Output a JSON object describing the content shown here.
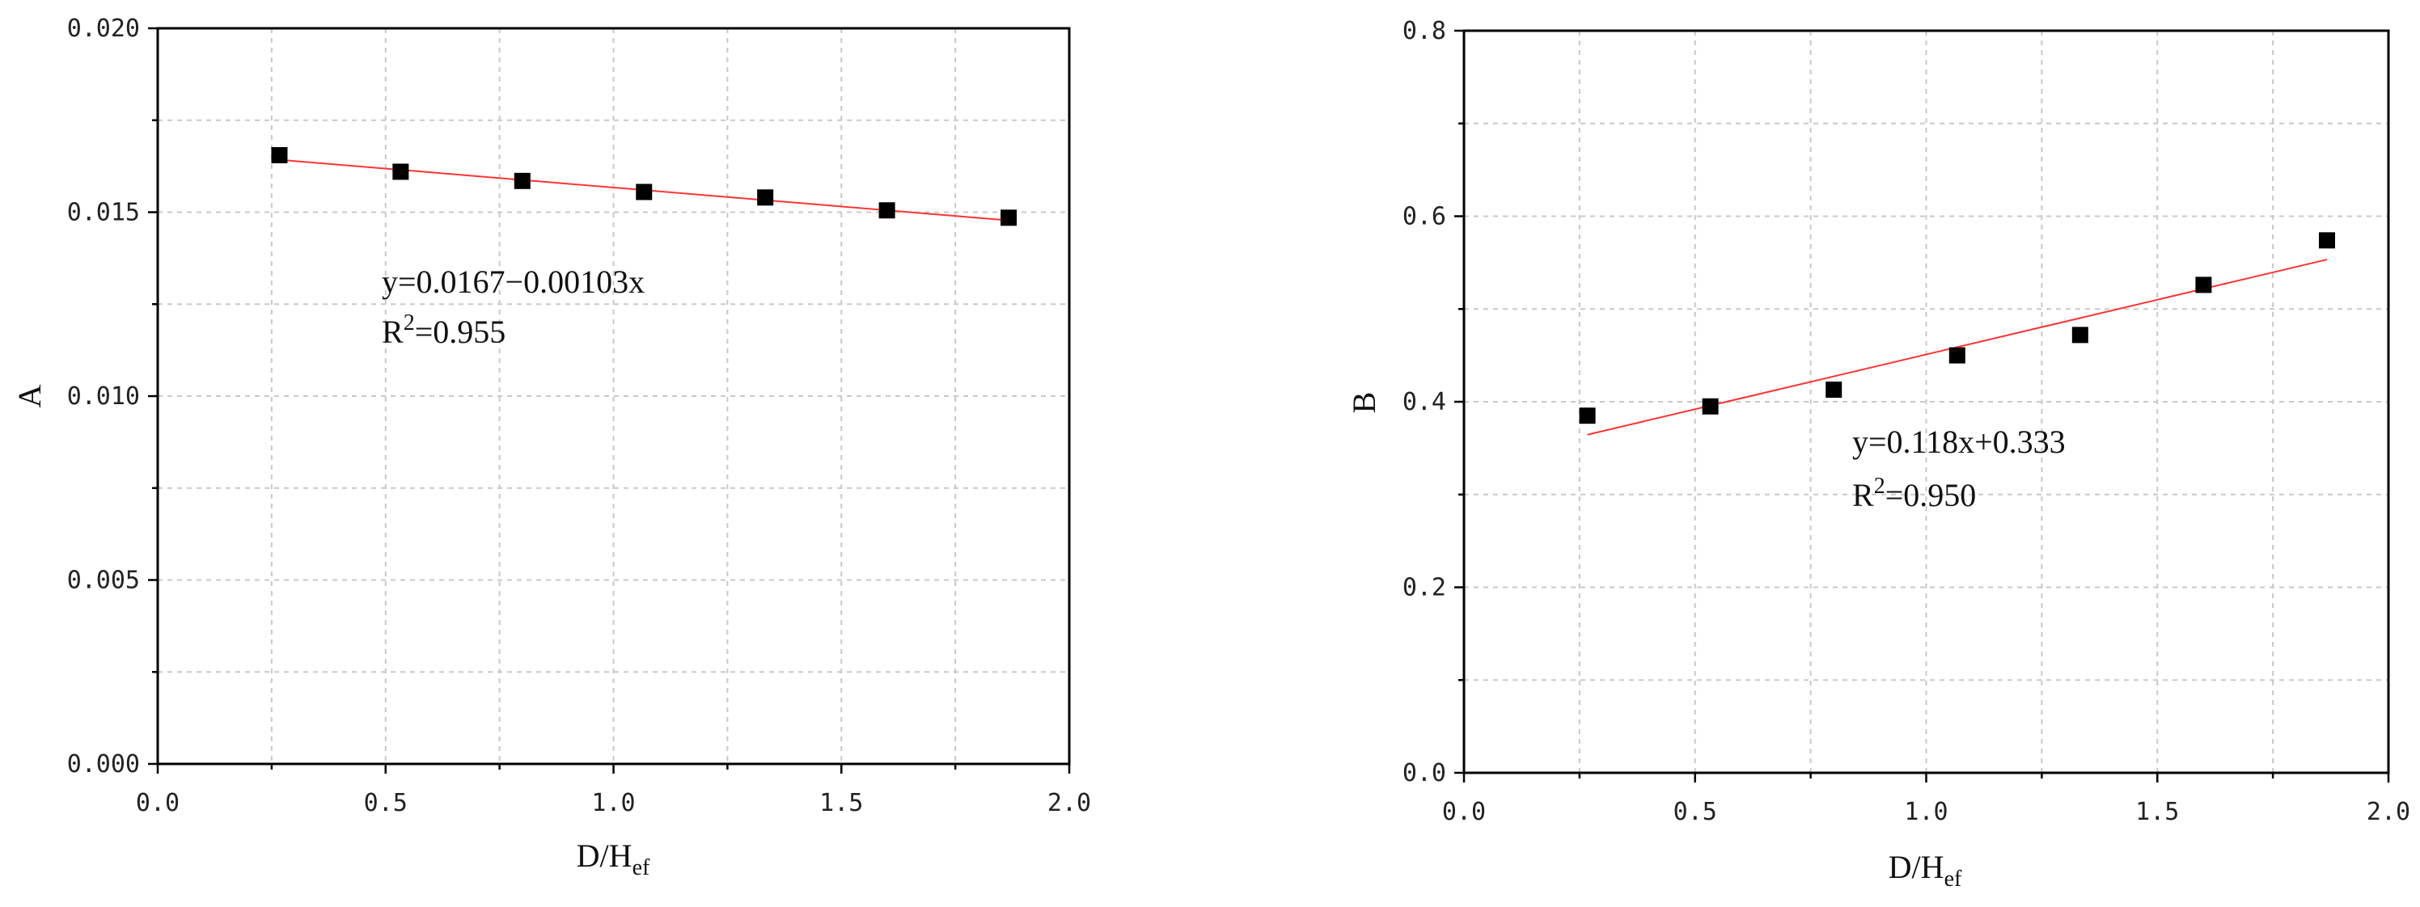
{
  "chart_data": [
    {
      "type": "scatter",
      "xlabel": "D/H",
      "xlabel_sub": "ef",
      "ylabel": "A",
      "xlim": [
        0.0,
        2.0
      ],
      "ylim": [
        0.0,
        0.02
      ],
      "xticks": [
        "0.0",
        "0.5",
        "1.0",
        "1.5",
        "2.0"
      ],
      "yticks": [
        "0.000",
        "0.005",
        "0.010",
        "0.015",
        "0.020"
      ],
      "grid": true,
      "series": [
        {
          "x": [
            0.267,
            0.533,
            0.8,
            1.067,
            1.333,
            1.6,
            1.867
          ],
          "y": [
            0.01655,
            0.0161,
            0.01585,
            0.01555,
            0.0154,
            0.01505,
            0.01485
          ],
          "marker": "square",
          "color": "#000000"
        }
      ],
      "fit": {
        "x0": 0.267,
        "x1": 1.867,
        "intercept": 0.0167,
        "slope": -0.00103,
        "color": "#ff3333"
      },
      "equation": {
        "line1": "y=0.0167−0.00103x",
        "r2_label": "R",
        "r2_exp": "2",
        "r2_value": "=0.955"
      }
    },
    {
      "type": "scatter",
      "xlabel": "D/H",
      "xlabel_sub": "ef",
      "ylabel": "B",
      "xlim": [
        0.0,
        2.0
      ],
      "ylim": [
        0.0,
        0.8
      ],
      "xticks": [
        "0.0",
        "0.5",
        "1.0",
        "1.5",
        "2.0"
      ],
      "yticks": [
        "0.0",
        "0.2",
        "0.4",
        "0.6",
        "0.8"
      ],
      "grid": true,
      "series": [
        {
          "x": [
            0.267,
            0.533,
            0.8,
            1.067,
            1.333,
            1.6,
            1.867
          ],
          "y": [
            0.385,
            0.395,
            0.413,
            0.45,
            0.472,
            0.526,
            0.574
          ],
          "marker": "square",
          "color": "#000000"
        }
      ],
      "fit": {
        "x0": 0.267,
        "x1": 1.867,
        "intercept": 0.333,
        "slope": 0.118,
        "color": "#ff3333"
      },
      "equation": {
        "line1": "y=0.118x+0.333",
        "r2_label": "R",
        "r2_exp": "2",
        "r2_value": "=0.950"
      }
    }
  ]
}
